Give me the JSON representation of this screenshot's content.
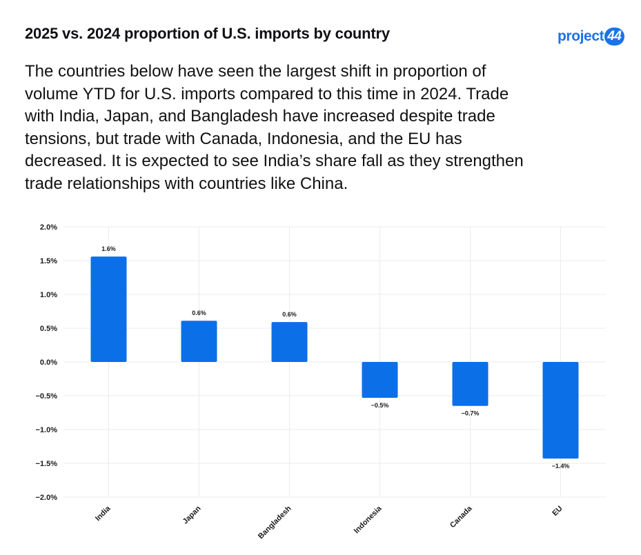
{
  "header": {
    "title": "2025 vs. 2024 proportion of U.S. imports by country",
    "logo_text": "project",
    "logo_badge": "44"
  },
  "description": "The countries below have seen the largest shift in proportion of volume YTD for U.S. imports compared to this time in 2024. Trade with India, Japan, and Bangladesh have increased despite trade tensions, but trade with Canada, Indonesia, and the EU has decreased. It is expected to see India’s share fall as they strengthen trade relationships with countries like China.",
  "colors": {
    "bar": "#0b6fe8",
    "grid": "#ebebeb",
    "text": "#1a1a1a"
  },
  "chart_data": {
    "type": "bar",
    "title": "2025 vs. 2024 proportion of U.S. imports by country",
    "xlabel": "",
    "ylabel": "",
    "categories": [
      "India",
      "Japan",
      "Bangladesh",
      "Indonesia",
      "Canada",
      "EU"
    ],
    "values": [
      1.56,
      0.61,
      0.59,
      -0.53,
      -0.65,
      -1.43
    ],
    "data_labels": [
      "1.6%",
      "0.6%",
      "0.6%",
      "−0.5%",
      "−0.7%",
      "−1.4%"
    ],
    "ylim": [
      -2.0,
      2.0
    ],
    "yticks": [
      2.0,
      1.5,
      1.0,
      0.5,
      0.0,
      -0.5,
      -1.0,
      -1.5,
      -2.0
    ],
    "ytick_labels": [
      "2.0%",
      "1.5%",
      "1.0%",
      "0.5%",
      "0.0%",
      "−0.5%",
      "−1.0%",
      "−1.5%",
      "−2.0%"
    ],
    "grid": true,
    "legend": "none"
  }
}
